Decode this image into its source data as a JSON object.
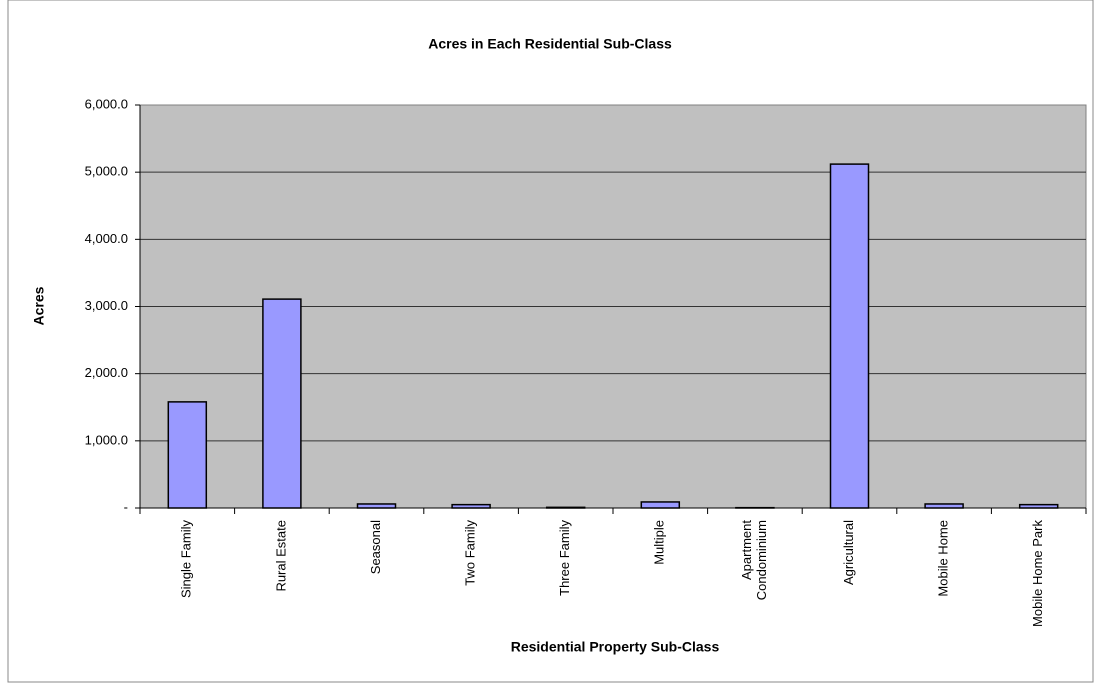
{
  "chart_data": {
    "type": "bar",
    "title": "Acres in Each Residential Sub-Class",
    "x_label": "Residential Property Sub-Class",
    "y_label": "Acres",
    "categories": [
      "Single Family",
      "Rural Estate",
      "Seasonal",
      "Two Family",
      "Three Family",
      "Multiple",
      "Apartment Condominium",
      "Agricultural",
      "Mobile Home",
      "Mobile Home Park"
    ],
    "values": [
      1580,
      3110,
      60,
      50,
      10,
      90,
      5,
      5120,
      60,
      50
    ],
    "color": "#9999ff",
    "ylim": [
      0,
      6000
    ],
    "yticks": [
      {
        "value": 0,
        "label": "-"
      },
      {
        "value": 1000,
        "label": "1,000.0"
      },
      {
        "value": 2000,
        "label": "2,000.0"
      },
      {
        "value": 3000,
        "label": "3,000.0"
      },
      {
        "value": 4000,
        "label": "4,000.0"
      },
      {
        "value": 5000,
        "label": "5,000.0"
      },
      {
        "value": 6000,
        "label": "6,000.0"
      }
    ],
    "grid": true
  }
}
